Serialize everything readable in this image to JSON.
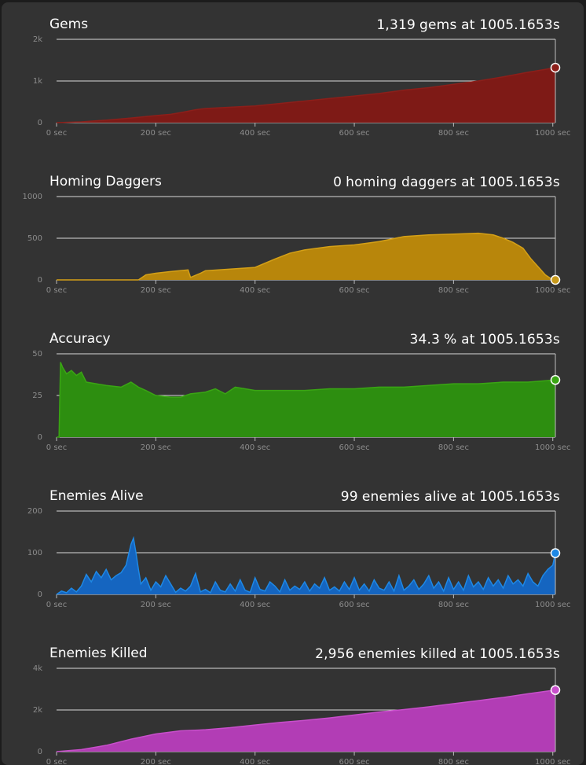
{
  "chart_data": [
    {
      "type": "area",
      "title": "Gems",
      "readout": {
        "value": "1,319",
        "unit": "gems",
        "at_label": "at",
        "time": "1005.1653s"
      },
      "xlim": [
        0,
        1005.1653
      ],
      "x_ticks": [
        0,
        200,
        400,
        600,
        800,
        1000
      ],
      "x_tick_labels": [
        "0 sec",
        "200 sec",
        "400 sec",
        "600 sec",
        "800 sec",
        "1000 sec"
      ],
      "ylim": [
        0,
        2000
      ],
      "y_ticks": [
        0,
        1000,
        2000
      ],
      "y_tick_labels": [
        "0",
        "1k",
        "2k"
      ],
      "color": "#7e1a16",
      "line_color": "#8c1f1a",
      "marker_color": "#8c1f1a",
      "grid": true,
      "series": [
        {
          "x": [
            0,
            50,
            100,
            150,
            200,
            230,
            250,
            280,
            300,
            350,
            400,
            450,
            500,
            550,
            600,
            650,
            700,
            750,
            800,
            850,
            900,
            950,
            1005.1653
          ],
          "y": [
            0,
            20,
            60,
            110,
            170,
            200,
            240,
            310,
            340,
            370,
            400,
            460,
            520,
            580,
            640,
            700,
            780,
            840,
            920,
            1000,
            1100,
            1210,
            1319
          ]
        }
      ]
    },
    {
      "type": "area",
      "title": "Homing Daggers",
      "readout": {
        "value": "0",
        "unit": "homing daggers",
        "at_label": "at",
        "time": "1005.1653s"
      },
      "xlim": [
        0,
        1005.1653
      ],
      "x_ticks": [
        0,
        200,
        400,
        600,
        800,
        1000
      ],
      "x_tick_labels": [
        "0 sec",
        "200 sec",
        "400 sec",
        "600 sec",
        "800 sec",
        "1000 sec"
      ],
      "ylim": [
        0,
        1000
      ],
      "y_ticks": [
        0,
        500,
        1000
      ],
      "y_tick_labels": [
        "0",
        "500",
        "1000"
      ],
      "color": "#b8860b",
      "line_color": "#d4a017",
      "marker_color": "#c89a1c",
      "grid": true,
      "series": [
        {
          "x": [
            0,
            165,
            170,
            180,
            200,
            230,
            265,
            270,
            290,
            300,
            350,
            400,
            440,
            470,
            500,
            550,
            600,
            650,
            700,
            750,
            800,
            850,
            880,
            900,
            920,
            940,
            955,
            970,
            985,
            995,
            1005.1653
          ],
          "y": [
            0,
            0,
            20,
            60,
            80,
            100,
            120,
            30,
            80,
            110,
            130,
            150,
            250,
            320,
            360,
            400,
            420,
            460,
            520,
            540,
            550,
            560,
            540,
            500,
            450,
            380,
            260,
            160,
            60,
            20,
            0
          ]
        }
      ]
    },
    {
      "type": "area",
      "title": "Accuracy",
      "readout": {
        "value": "34.3",
        "unit": "%",
        "at_label": "at",
        "time": "1005.1653s"
      },
      "xlim": [
        0,
        1005.1653
      ],
      "x_ticks": [
        0,
        200,
        400,
        600,
        800,
        1000
      ],
      "x_tick_labels": [
        "0 sec",
        "200 sec",
        "400 sec",
        "600 sec",
        "800 sec",
        "1000 sec"
      ],
      "ylim": [
        0,
        50
      ],
      "y_ticks": [
        0,
        25,
        50
      ],
      "y_tick_labels": [
        "0",
        "25",
        "50"
      ],
      "color": "#2d8e10",
      "line_color": "#3aa514",
      "marker_color": "#3aa514",
      "grid": true,
      "series": [
        {
          "x": [
            0,
            5,
            8,
            12,
            20,
            30,
            40,
            50,
            60,
            80,
            100,
            130,
            150,
            165,
            180,
            200,
            230,
            250,
            270,
            300,
            320,
            340,
            360,
            400,
            450,
            500,
            550,
            600,
            650,
            700,
            750,
            800,
            850,
            900,
            950,
            1005.1653
          ],
          "y": [
            0,
            0,
            45,
            42,
            38,
            40,
            37,
            39,
            33,
            32,
            31,
            30,
            33,
            30,
            28,
            25,
            24,
            24,
            26,
            27,
            29,
            26,
            30,
            28,
            28,
            28,
            29,
            29,
            30,
            30,
            31,
            32,
            32,
            33,
            33,
            34.3
          ]
        }
      ]
    },
    {
      "type": "area",
      "title": "Enemies Alive",
      "readout": {
        "value": "99",
        "unit": "enemies alive",
        "at_label": "at",
        "time": "1005.1653s"
      },
      "xlim": [
        0,
        1005.1653
      ],
      "x_ticks": [
        0,
        200,
        400,
        600,
        800,
        1000
      ],
      "x_tick_labels": [
        "0 sec",
        "200 sec",
        "400 sec",
        "600 sec",
        "800 sec",
        "1000 sec"
      ],
      "ylim": [
        0,
        200
      ],
      "y_ticks": [
        0,
        100,
        200
      ],
      "y_tick_labels": [
        "0",
        "100",
        "200"
      ],
      "color": "#1565c0",
      "line_color": "#1e88e5",
      "marker_color": "#1e88e5",
      "grid": true,
      "series": [
        {
          "x": [
            0,
            10,
            20,
            30,
            40,
            50,
            60,
            70,
            80,
            90,
            100,
            110,
            120,
            130,
            140,
            145,
            150,
            155,
            160,
            165,
            170,
            180,
            190,
            200,
            210,
            220,
            230,
            240,
            250,
            260,
            270,
            280,
            290,
            300,
            310,
            320,
            330,
            340,
            350,
            360,
            370,
            380,
            390,
            400,
            410,
            420,
            430,
            440,
            450,
            460,
            470,
            480,
            490,
            500,
            510,
            520,
            530,
            540,
            550,
            560,
            570,
            580,
            590,
            600,
            610,
            620,
            630,
            640,
            650,
            660,
            670,
            680,
            690,
            700,
            710,
            720,
            730,
            740,
            750,
            760,
            770,
            780,
            790,
            800,
            810,
            820,
            830,
            840,
            850,
            860,
            870,
            880,
            890,
            900,
            910,
            920,
            930,
            940,
            950,
            960,
            970,
            980,
            990,
            1000,
            1005.1653
          ],
          "y": [
            0,
            8,
            4,
            15,
            6,
            20,
            48,
            30,
            55,
            40,
            60,
            35,
            45,
            52,
            70,
            95,
            120,
            135,
            100,
            60,
            25,
            40,
            10,
            30,
            18,
            45,
            25,
            5,
            15,
            8,
            20,
            50,
            6,
            12,
            4,
            30,
            10,
            6,
            25,
            8,
            35,
            10,
            5,
            40,
            12,
            8,
            30,
            20,
            6,
            35,
            10,
            20,
            12,
            30,
            8,
            25,
            15,
            40,
            10,
            18,
            8,
            30,
            12,
            40,
            10,
            25,
            8,
            35,
            15,
            10,
            30,
            8,
            45,
            10,
            20,
            35,
            12,
            25,
            45,
            15,
            30,
            8,
            40,
            12,
            30,
            10,
            45,
            18,
            30,
            12,
            40,
            20,
            35,
            15,
            45,
            25,
            35,
            20,
            50,
            30,
            20,
            45,
            60,
            70,
            99
          ]
        }
      ]
    },
    {
      "type": "area",
      "title": "Enemies Killed",
      "readout": {
        "value": "2,956",
        "unit": "enemies killed",
        "at_label": "at",
        "time": "1005.1653s"
      },
      "xlim": [
        0,
        1005.1653
      ],
      "x_ticks": [
        0,
        200,
        400,
        600,
        800,
        1000
      ],
      "x_tick_labels": [
        "0 sec",
        "200 sec",
        "400 sec",
        "600 sec",
        "800 sec",
        "1000 sec"
      ],
      "ylim": [
        0,
        4000
      ],
      "y_ticks": [
        0,
        2000,
        4000
      ],
      "y_tick_labels": [
        "0",
        "2k",
        "4k"
      ],
      "color": "#b23db5",
      "line_color": "#c84fcb",
      "marker_color": "#c84fcb",
      "grid": true,
      "series": [
        {
          "x": [
            0,
            50,
            100,
            150,
            200,
            250,
            300,
            350,
            400,
            450,
            500,
            550,
            600,
            650,
            700,
            750,
            800,
            850,
            900,
            950,
            1005.1653
          ],
          "y": [
            0,
            100,
            300,
            600,
            850,
            1000,
            1050,
            1150,
            1280,
            1400,
            1500,
            1620,
            1760,
            1900,
            2020,
            2150,
            2300,
            2450,
            2600,
            2780,
            2956
          ]
        }
      ]
    }
  ]
}
